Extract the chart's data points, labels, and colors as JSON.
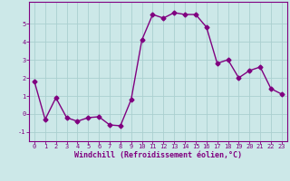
{
  "x": [
    0,
    1,
    2,
    3,
    4,
    5,
    6,
    7,
    8,
    9,
    10,
    11,
    12,
    13,
    14,
    15,
    16,
    17,
    18,
    19,
    20,
    21,
    22,
    23
  ],
  "y": [
    1.8,
    -0.3,
    0.9,
    -0.2,
    -0.4,
    -0.2,
    -0.15,
    -0.6,
    -0.65,
    0.8,
    4.1,
    5.5,
    5.3,
    5.6,
    5.5,
    5.5,
    4.8,
    2.8,
    3.0,
    2.0,
    2.4,
    2.6,
    1.4,
    1.1
  ],
  "line_color": "#800080",
  "marker": "D",
  "marker_size": 2.5,
  "bg_color": "#cce8e8",
  "grid_color": "#aacfcf",
  "xlabel": "Windchill (Refroidissement éolien,°C)",
  "xlabel_color": "#800080",
  "tick_color": "#800080",
  "spine_color": "#800080",
  "ylim": [
    -1.5,
    6.2
  ],
  "xlim": [
    -0.5,
    23.5
  ],
  "yticks": [
    -1,
    0,
    1,
    2,
    3,
    4,
    5
  ],
  "xticks": [
    0,
    1,
    2,
    3,
    4,
    5,
    6,
    7,
    8,
    9,
    10,
    11,
    12,
    13,
    14,
    15,
    16,
    17,
    18,
    19,
    20,
    21,
    22,
    23
  ],
  "tick_fontsize": 5.0,
  "xlabel_fontsize": 6.0,
  "linewidth": 1.0
}
